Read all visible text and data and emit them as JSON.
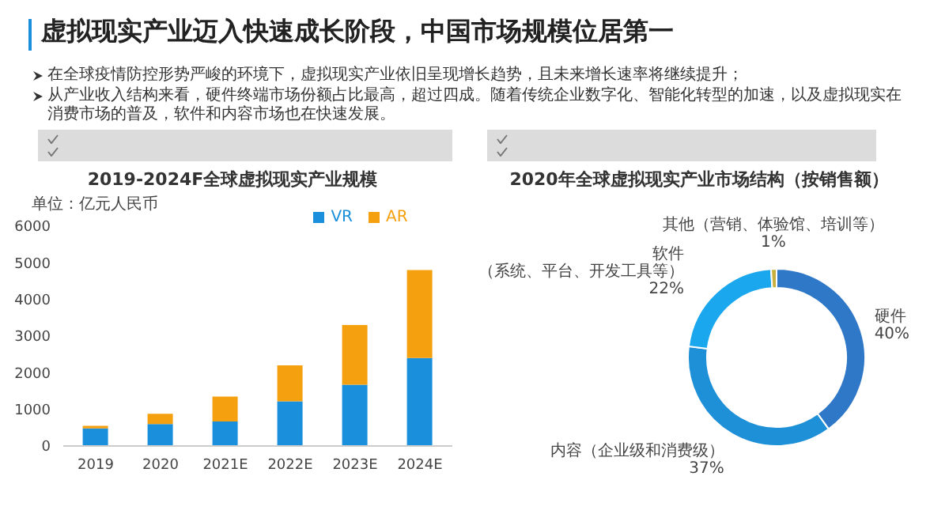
{
  "chart_data": [
    {
      "type": "bar",
      "title": "2019-2024F全球虚拟现实产业规模",
      "ylabel": "单位：亿元人民币",
      "annotations": [
        "虚拟现实产业迈入快速成长阶段，中国市场规模位居第一",
        "在全球疫情防控形势严峻的环境下，虚拟现实产业依旧呈现增长趋势，且未来增长速率将继续提升；",
        "从产业收入结构来看，硬件终端市场份额占比最高，超过四成。随着传统企业数字化、智能化转型的加速，以及虚拟现实在消费市场的普及，软件和内容市场也在快速发展。"
      ],
      "categories": [
        "2019",
        "2020",
        "2021E",
        "2022E",
        "2023E",
        "2024E"
      ],
      "stacked": true,
      "legend": "top",
      "ylim": [
        0,
        6000
      ],
      "yticks": [
        0,
        1000,
        2000,
        3000,
        4000,
        5000,
        6000
      ],
      "series": [
        {
          "name": "VR",
          "color": "#1a8fdc",
          "values": [
            480,
            600,
            670,
            1220,
            1670,
            2400
          ]
        },
        {
          "name": "AR",
          "color": "#f5a10f",
          "values": [
            70,
            280,
            680,
            980,
            1630,
            2400
          ]
        }
      ]
    },
    {
      "type": "donut",
      "title": "2020年全球虚拟现实产业市场结构（按销售额）",
      "categories": [
        "硬件",
        "内容（企业级和消费级）",
        "软件（系统、平台、开发工具等）",
        "其他（营销、体验馆、培训等）"
      ],
      "values": [
        40,
        37,
        22,
        1
      ],
      "value_labels": [
        "40%",
        "37%",
        "22%",
        "1%"
      ],
      "colors": [
        "#2f78c8",
        "#1e90d8",
        "#1aa7ee",
        "#c8b040"
      ]
    }
  ]
}
